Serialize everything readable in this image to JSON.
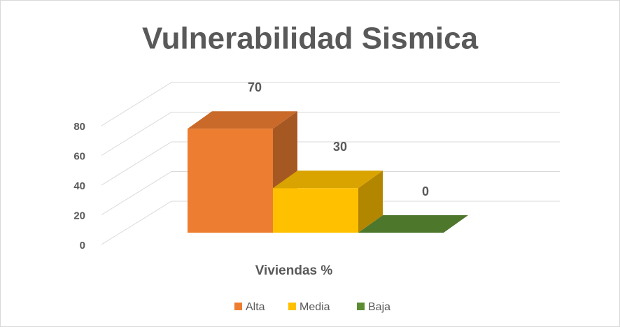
{
  "chart_data": {
    "type": "bar3d",
    "title": "Vulnerabilidad Sismica",
    "categories": [
      "Viviendas %"
    ],
    "series": [
      {
        "name": "Alta",
        "color": "#ed7d31",
        "values": [
          70
        ]
      },
      {
        "name": "Media",
        "color": "#ffc000",
        "values": [
          30
        ]
      },
      {
        "name": "Baja",
        "color": "#5b8c32",
        "values": [
          0
        ]
      }
    ],
    "ylim": [
      0,
      80
    ],
    "yticks": [
      0,
      20,
      40,
      60,
      80
    ],
    "grid": true,
    "legend": "bottom"
  }
}
